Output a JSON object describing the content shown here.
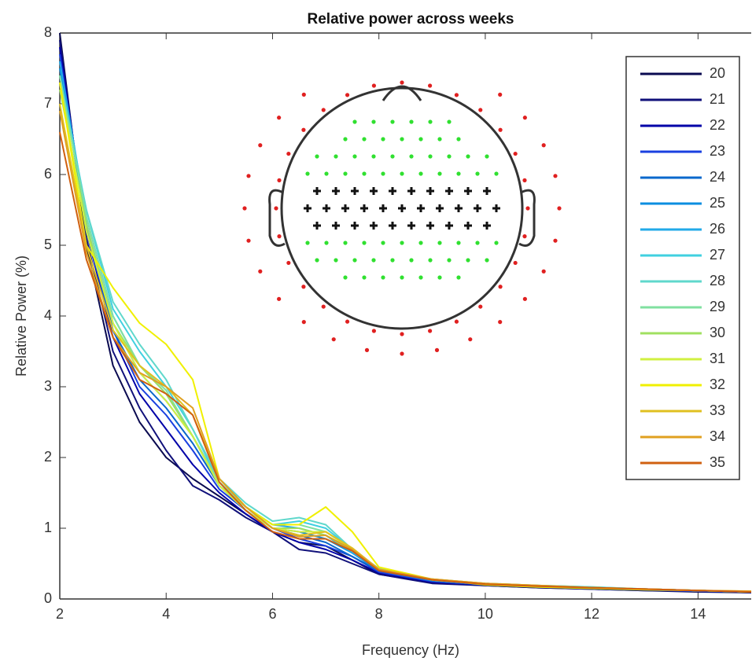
{
  "chart_data": {
    "type": "line",
    "title": "Relative power across weeks",
    "xlabel": "Frequency (Hz)",
    "ylabel": "Relative Power (%)",
    "x": [
      2,
      2.5,
      3,
      3.5,
      4,
      4.5,
      5,
      5.5,
      6,
      6.5,
      7,
      7.5,
      8,
      9,
      10,
      11,
      12,
      13,
      14,
      15
    ],
    "xlim": [
      2,
      15
    ],
    "ylim": [
      0,
      8
    ],
    "xticks": [
      2,
      4,
      6,
      8,
      10,
      12,
      14
    ],
    "yticks": [
      0,
      1,
      2,
      3,
      4,
      5,
      6,
      7,
      8
    ],
    "legend": "top-right",
    "series": [
      {
        "name": "20",
        "color": "#0a0a50",
        "values": [
          8.0,
          5.0,
          3.3,
          2.5,
          2.0,
          1.7,
          1.45,
          1.2,
          0.95,
          0.8,
          0.75,
          0.55,
          0.35,
          0.23,
          0.19,
          0.16,
          0.14,
          0.12,
          0.1,
          0.09
        ]
      },
      {
        "name": "21",
        "color": "#10107a",
        "values": [
          7.9,
          5.1,
          3.5,
          2.7,
          2.1,
          1.6,
          1.4,
          1.15,
          0.95,
          0.7,
          0.65,
          0.5,
          0.35,
          0.22,
          0.19,
          0.16,
          0.14,
          0.12,
          0.11,
          0.09
        ]
      },
      {
        "name": "22",
        "color": "#0000a8",
        "values": [
          7.8,
          5.2,
          3.7,
          2.9,
          2.4,
          1.9,
          1.5,
          1.2,
          0.95,
          0.8,
          0.7,
          0.55,
          0.37,
          0.24,
          0.2,
          0.17,
          0.15,
          0.13,
          0.11,
          0.1
        ]
      },
      {
        "name": "23",
        "color": "#1a40e0",
        "values": [
          7.7,
          5.2,
          3.8,
          3.0,
          2.6,
          2.1,
          1.55,
          1.25,
          1.0,
          0.85,
          0.75,
          0.6,
          0.38,
          0.25,
          0.2,
          0.17,
          0.15,
          0.13,
          0.11,
          0.1
        ]
      },
      {
        "name": "24",
        "color": "#0a68cc",
        "values": [
          7.6,
          5.3,
          3.8,
          3.1,
          2.7,
          2.2,
          1.6,
          1.25,
          1.0,
          0.9,
          0.8,
          0.6,
          0.4,
          0.26,
          0.21,
          0.18,
          0.15,
          0.13,
          0.12,
          0.1
        ]
      },
      {
        "name": "25",
        "color": "#0a8ee0",
        "values": [
          7.5,
          5.3,
          3.9,
          3.2,
          2.8,
          2.3,
          1.6,
          1.3,
          1.0,
          0.95,
          0.85,
          0.65,
          0.4,
          0.26,
          0.21,
          0.18,
          0.16,
          0.14,
          0.12,
          0.1
        ]
      },
      {
        "name": "26",
        "color": "#22aae8",
        "values": [
          7.6,
          5.4,
          4.0,
          3.3,
          2.9,
          2.3,
          1.65,
          1.3,
          1.05,
          1.0,
          0.9,
          0.65,
          0.42,
          0.27,
          0.21,
          0.18,
          0.16,
          0.14,
          0.12,
          0.1
        ]
      },
      {
        "name": "27",
        "color": "#40d0e0",
        "values": [
          7.4,
          5.5,
          4.1,
          3.5,
          3.0,
          2.4,
          1.65,
          1.3,
          1.05,
          1.1,
          1.0,
          0.7,
          0.42,
          0.27,
          0.22,
          0.19,
          0.17,
          0.14,
          0.12,
          0.1
        ]
      },
      {
        "name": "28",
        "color": "#60d8cc",
        "values": [
          7.3,
          5.5,
          4.2,
          3.6,
          3.1,
          2.4,
          1.7,
          1.35,
          1.1,
          1.15,
          1.05,
          0.7,
          0.43,
          0.28,
          0.22,
          0.19,
          0.17,
          0.14,
          0.12,
          0.1
        ]
      },
      {
        "name": "29",
        "color": "#80e0a0",
        "values": [
          7.4,
          5.4,
          4.0,
          3.3,
          2.95,
          2.3,
          1.65,
          1.3,
          1.05,
          1.05,
          0.95,
          0.7,
          0.42,
          0.27,
          0.21,
          0.18,
          0.16,
          0.14,
          0.12,
          0.1
        ]
      },
      {
        "name": "30",
        "color": "#a0e060",
        "values": [
          7.2,
          5.3,
          3.9,
          3.3,
          2.9,
          2.3,
          1.6,
          1.3,
          1.0,
          1.0,
          0.9,
          0.68,
          0.41,
          0.27,
          0.21,
          0.18,
          0.16,
          0.14,
          0.12,
          0.1
        ]
      },
      {
        "name": "31",
        "color": "#d0f040",
        "values": [
          7.3,
          5.2,
          3.9,
          3.2,
          2.8,
          2.3,
          1.6,
          1.25,
          1.0,
          0.95,
          0.95,
          0.7,
          0.42,
          0.27,
          0.21,
          0.18,
          0.16,
          0.14,
          0.12,
          0.1
        ]
      },
      {
        "name": "32",
        "color": "#f0f000",
        "values": [
          7.3,
          5.0,
          4.4,
          3.9,
          3.6,
          3.1,
          1.7,
          1.3,
          1.05,
          1.05,
          1.3,
          0.95,
          0.45,
          0.28,
          0.2,
          0.17,
          0.15,
          0.13,
          0.12,
          0.1
        ]
      },
      {
        "name": "33",
        "color": "#e0c020",
        "values": [
          7.0,
          5.0,
          3.8,
          3.3,
          3.0,
          2.6,
          1.7,
          1.3,
          1.0,
          0.9,
          0.95,
          0.72,
          0.42,
          0.28,
          0.22,
          0.19,
          0.16,
          0.14,
          0.12,
          0.11
        ]
      },
      {
        "name": "34",
        "color": "#e0a020",
        "values": [
          6.9,
          4.9,
          3.7,
          3.2,
          3.0,
          2.7,
          1.7,
          1.3,
          1.0,
          0.88,
          0.9,
          0.7,
          0.42,
          0.28,
          0.22,
          0.19,
          0.16,
          0.14,
          0.12,
          0.11
        ]
      },
      {
        "name": "35",
        "color": "#d06010",
        "values": [
          6.6,
          4.8,
          3.7,
          3.1,
          2.9,
          2.6,
          1.65,
          1.25,
          0.95,
          0.85,
          0.85,
          0.68,
          0.4,
          0.27,
          0.21,
          0.18,
          0.16,
          0.14,
          0.12,
          0.1
        ]
      }
    ]
  }
}
